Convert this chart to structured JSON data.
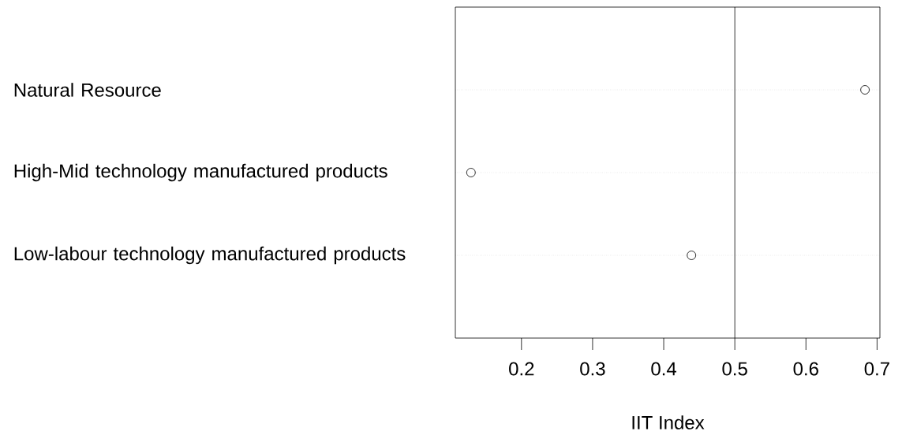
{
  "chart_data": {
    "type": "scatter",
    "orientation": "horizontal",
    "categories": [
      "Natural Resource",
      "High-Mid technology manufactured products",
      "Low-labour technology manufactured products"
    ],
    "values": [
      0.683,
      0.129,
      0.439
    ],
    "color": "#000000",
    "marker": "circle",
    "xlabel": "IIT Index",
    "xlim": [
      0.107,
      0.704
    ],
    "xticks": [
      0.2,
      0.3,
      0.4,
      0.5,
      0.6,
      0.7
    ],
    "grid": "y",
    "ref_lines": [
      {
        "axis": "x",
        "value": 0.5,
        "color": "#000000"
      }
    ]
  }
}
